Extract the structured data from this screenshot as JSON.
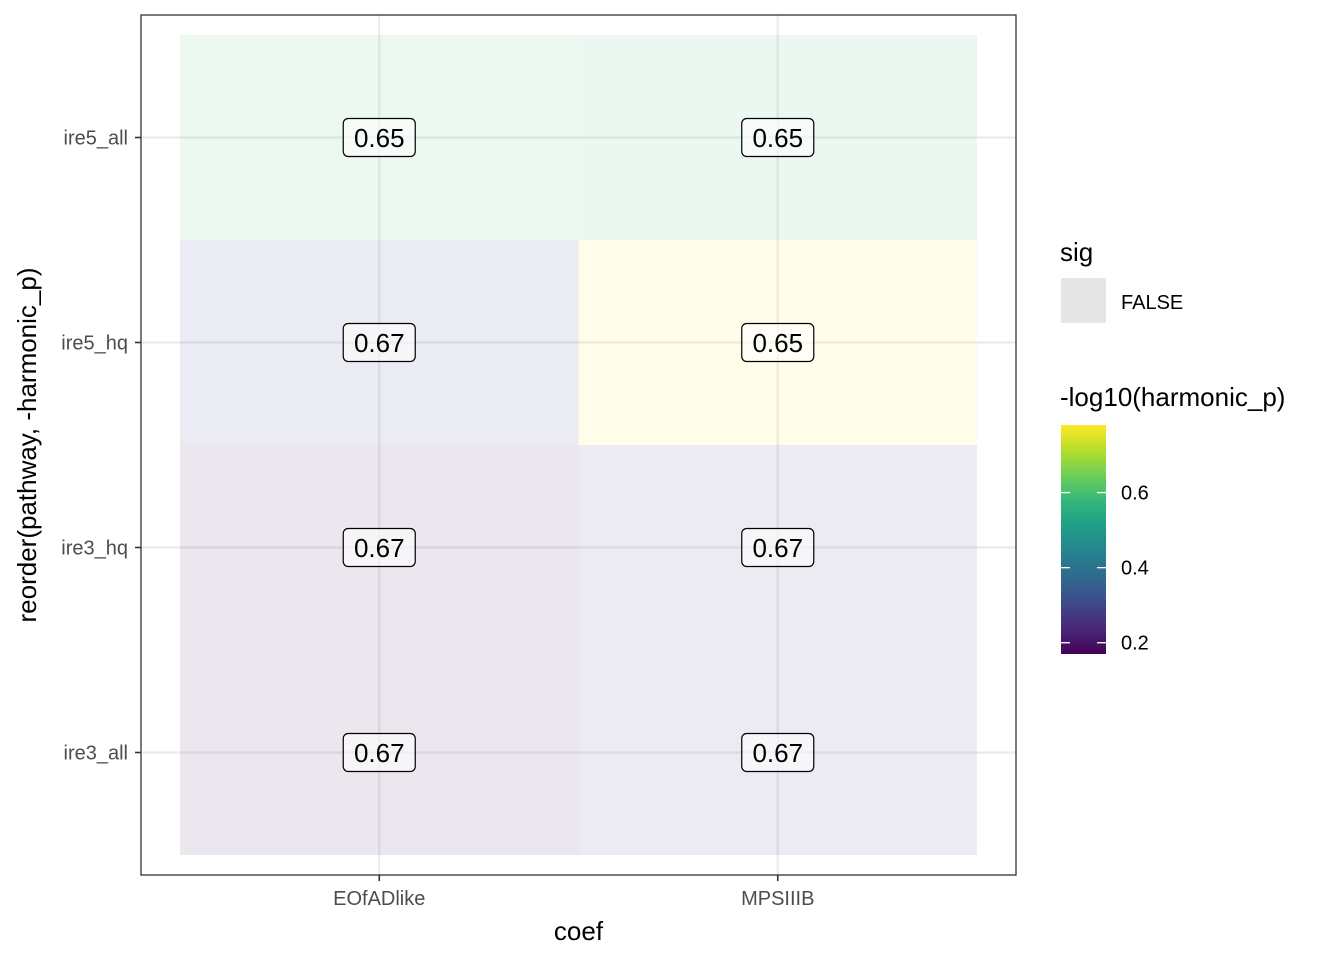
{
  "chart_data": {
    "type": "heatmap",
    "xlabel": "coef",
    "ylabel": "reorder(pathway, -harmonic_p)",
    "x_categories": [
      "EOfADlike",
      "MPSIIIB"
    ],
    "y_categories": [
      "ire3_all",
      "ire3_hq",
      "ire5_hq",
      "ire5_all"
    ],
    "cells": [
      {
        "x": "EOfADlike",
        "y": "ire5_all",
        "fill": 0.6,
        "label": "0.65"
      },
      {
        "x": "MPSIIIB",
        "y": "ire5_all",
        "fill": 0.58,
        "label": "0.65"
      },
      {
        "x": "EOfADlike",
        "y": "ire5_hq",
        "fill": 0.3,
        "label": "0.67"
      },
      {
        "x": "MPSIIIB",
        "y": "ire5_hq",
        "fill": 0.78,
        "label": "0.65"
      },
      {
        "x": "EOfADlike",
        "y": "ire3_hq",
        "fill": 0.18,
        "label": "0.67"
      },
      {
        "x": "MPSIIIB",
        "y": "ire3_hq",
        "fill": 0.28,
        "label": "0.67"
      },
      {
        "x": "EOfADlike",
        "y": "ire3_all",
        "fill": 0.18,
        "label": "0.67"
      },
      {
        "x": "MPSIIIB",
        "y": "ire3_all",
        "fill": 0.26,
        "label": "0.67"
      }
    ],
    "alpha_legend": {
      "title": "sig",
      "entries": [
        "FALSE"
      ]
    },
    "color_legend": {
      "title": "-log10(harmonic_p)",
      "range": [
        0.17,
        0.78
      ],
      "breaks": [
        0.2,
        0.4,
        0.6
      ],
      "break_labels": [
        "0.2",
        "0.4",
        "0.6"
      ],
      "palette": "viridis"
    },
    "grid": true,
    "legend_position": "right",
    "colors": {
      "panel_border": "#333333",
      "grid": "#ebebeb",
      "sig_key": "#e6e6e6"
    }
  }
}
